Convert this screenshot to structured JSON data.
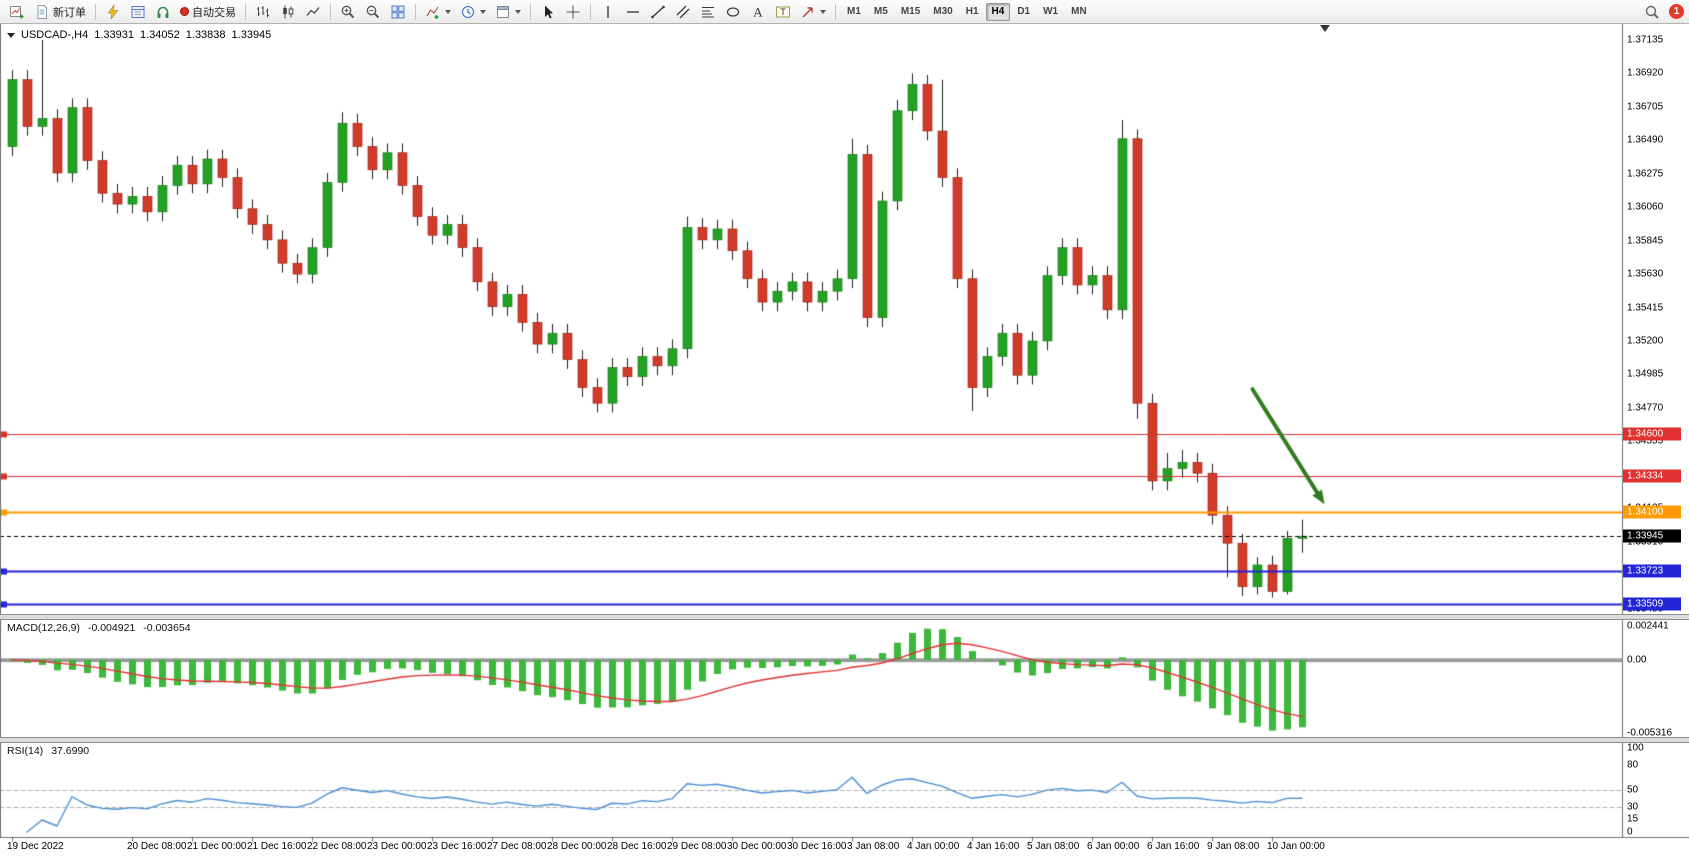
{
  "toolbar": {
    "new_order_label": "新订单",
    "autotrading_label": "自动交易",
    "timeframes": [
      "M1",
      "M5",
      "M15",
      "M30",
      "H1",
      "H4",
      "D1",
      "W1",
      "MN"
    ],
    "active_timeframe": "H4",
    "notification_count": "1",
    "icons": [
      "new-chart",
      "new-order",
      "metaeditor-lightning",
      "data-window",
      "headset-support",
      "autotrading-status",
      "bar-chart-type",
      "candlestick-chart-type",
      "line-chart-type",
      "zoom-in",
      "zoom-out",
      "tile-windows",
      "indicators",
      "periods-clock",
      "templates",
      "cursor",
      "crosshair",
      "vertical-line",
      "horizontal-line",
      "trendline",
      "equidistant-channel",
      "fibonacci",
      "ellipse-shape",
      "text",
      "text-label",
      "arrows",
      "search",
      "notifications"
    ]
  },
  "colors": {
    "bull": "#23a123",
    "bull_border": "#117711",
    "bear": "#d23b2a",
    "bear_border": "#8f1d10",
    "wick": "#222222",
    "macd_hist": "#3cb83c",
    "macd_signal": "#e23232",
    "rsi_line": "#4a8fd4",
    "arrow": "#2f7d1e",
    "grid_dash": "#b0b0b0"
  },
  "chart_data": {
    "type": "candlestick",
    "header": {
      "symbol_period": "USDCAD-,H4",
      "open": "1.33931",
      "high": "1.34052",
      "low": "1.33838",
      "close": "1.33945"
    },
    "ylim": [
      1.3344,
      1.3724
    ],
    "price_axis_labels": [
      "1.37135",
      "1.36920",
      "1.36705",
      "1.36490",
      "1.36275",
      "1.36060",
      "1.35845",
      "1.35630",
      "1.35415",
      "1.35200",
      "1.34985",
      "1.34770",
      "1.34555",
      "1.34340",
      "1.34125",
      "1.33910",
      "1.33695",
      "1.33480"
    ],
    "levels": [
      {
        "price": 1.346,
        "label": "1.34600",
        "color": "#e03030",
        "width": 1,
        "style": "solid",
        "current": false
      },
      {
        "price": 1.34334,
        "label": "1.34334",
        "color": "#e03030",
        "width": 1,
        "style": "solid",
        "current": false
      },
      {
        "price": 1.341,
        "label": "1.34100",
        "color": "#ff9a00",
        "width": 2,
        "style": "solid",
        "current": false
      },
      {
        "price": 1.33945,
        "label": "1.33945",
        "color": "#000000",
        "width": 1,
        "style": "dash",
        "current": true
      },
      {
        "price": 1.33723,
        "label": "1.33723",
        "color": "#2424d8",
        "width": 2,
        "style": "solid",
        "current": false
      },
      {
        "price": 1.33509,
        "label": "1.33509",
        "color": "#2424d8",
        "width": 2,
        "style": "solid",
        "current": false
      }
    ],
    "arrow": {
      "from": {
        "bar": 82.7,
        "price": 1.3489
      },
      "to": {
        "bar": 87.5,
        "price": 1.3415
      },
      "color": "#2f7d1e"
    },
    "macd": {
      "label": "MACD(12,26,9)",
      "main_value": "-0.004921",
      "signal_value": "-0.003654",
      "axis_labels": [
        "0.002441",
        "0.00",
        "-0.005316"
      ],
      "max": 0.002441,
      "min": -0.005316,
      "fast": 12,
      "slow": 26,
      "signal": 9
    },
    "rsi": {
      "label": "RSI(14)",
      "value": "37.6990",
      "period": 14,
      "axis_labels": [
        "100",
        "80",
        "50",
        "30",
        "15",
        "0"
      ],
      "levels": [
        50,
        30
      ],
      "max": 100,
      "min": 0
    },
    "time_labels": [
      {
        "bar": 0,
        "text": "19 Dec 2022"
      },
      {
        "bar": 8,
        "text": "20 Dec 08:00"
      },
      {
        "bar": 12,
        "text": "21 Dec 00:00"
      },
      {
        "bar": 16,
        "text": "21 Dec 16:00"
      },
      {
        "bar": 20,
        "text": "22 Dec 08:00"
      },
      {
        "bar": 24,
        "text": "23 Dec 00:00"
      },
      {
        "bar": 28,
        "text": "23 Dec 16:00"
      },
      {
        "bar": 32,
        "text": "27 Dec 08:00"
      },
      {
        "bar": 36,
        "text": "28 Dec 00:00"
      },
      {
        "bar": 40,
        "text": "28 Dec 16:00"
      },
      {
        "bar": 44,
        "text": "29 Dec 08:00"
      },
      {
        "bar": 48,
        "text": "30 Dec 00:00"
      },
      {
        "bar": 52,
        "text": "30 Dec 16:00"
      },
      {
        "bar": 56,
        "text": "3 Jan 08:00"
      },
      {
        "bar": 60,
        "text": "4 Jan 00:00"
      },
      {
        "bar": 64,
        "text": "4 Jan 16:00"
      },
      {
        "bar": 68,
        "text": "5 Jan 08:00"
      },
      {
        "bar": 72,
        "text": "6 Jan 00:00"
      },
      {
        "bar": 76,
        "text": "6 Jan 16:00"
      },
      {
        "bar": 80,
        "text": "9 Jan 08:00"
      },
      {
        "bar": 84,
        "text": "10 Jan 00:00"
      }
    ],
    "candles": [
      [
        1.3645,
        1.3694,
        1.3639,
        1.3688
      ],
      [
        1.3688,
        1.3694,
        1.3652,
        1.3658
      ],
      [
        1.3658,
        1.37135,
        1.3652,
        1.3663
      ],
      [
        1.3663,
        1.3669,
        1.3622,
        1.3628
      ],
      [
        1.3628,
        1.3676,
        1.3622,
        1.367
      ],
      [
        1.367,
        1.3676,
        1.363,
        1.3636
      ],
      [
        1.3636,
        1.3642,
        1.3609,
        1.3615
      ],
      [
        1.3615,
        1.3621,
        1.3602,
        1.3608
      ],
      [
        1.3608,
        1.3619,
        1.3602,
        1.3613
      ],
      [
        1.3613,
        1.3619,
        1.3597,
        1.3603
      ],
      [
        1.3603,
        1.3626,
        1.3597,
        1.362
      ],
      [
        1.362,
        1.3639,
        1.3614,
        1.3633
      ],
      [
        1.3633,
        1.3639,
        1.3615,
        1.3621
      ],
      [
        1.3621,
        1.3643,
        1.3615,
        1.3637
      ],
      [
        1.3637,
        1.3643,
        1.3619,
        1.3625
      ],
      [
        1.3625,
        1.3631,
        1.3599,
        1.3605
      ],
      [
        1.3605,
        1.3611,
        1.3589,
        1.3595
      ],
      [
        1.3595,
        1.3601,
        1.3579,
        1.3585
      ],
      [
        1.3585,
        1.3591,
        1.3564,
        1.357
      ],
      [
        1.357,
        1.3576,
        1.3557,
        1.3563
      ],
      [
        1.3563,
        1.3586,
        1.3557,
        1.358
      ],
      [
        1.358,
        1.3628,
        1.3574,
        1.3622
      ],
      [
        1.3622,
        1.3667,
        1.3616,
        1.366
      ],
      [
        1.366,
        1.3666,
        1.3639,
        1.3645
      ],
      [
        1.3645,
        1.3651,
        1.3624,
        1.363
      ],
      [
        1.363,
        1.3647,
        1.3624,
        1.3641
      ],
      [
        1.3641,
        1.3647,
        1.3614,
        1.362
      ],
      [
        1.362,
        1.3626,
        1.3594,
        1.36
      ],
      [
        1.36,
        1.3606,
        1.3582,
        1.3588
      ],
      [
        1.3588,
        1.3601,
        1.3582,
        1.3595
      ],
      [
        1.3595,
        1.3601,
        1.3574,
        1.358
      ],
      [
        1.358,
        1.3586,
        1.3552,
        1.3558
      ],
      [
        1.3558,
        1.3564,
        1.3536,
        1.3542
      ],
      [
        1.3542,
        1.3556,
        1.3536,
        1.355
      ],
      [
        1.355,
        1.3556,
        1.3526,
        1.3532
      ],
      [
        1.3532,
        1.3538,
        1.3512,
        1.3518
      ],
      [
        1.3518,
        1.3531,
        1.3512,
        1.3525
      ],
      [
        1.3525,
        1.3531,
        1.3502,
        1.3508
      ],
      [
        1.3508,
        1.3514,
        1.3484,
        1.349
      ],
      [
        1.349,
        1.3496,
        1.3474,
        1.348
      ],
      [
        1.348,
        1.3509,
        1.3474,
        1.3503
      ],
      [
        1.3503,
        1.3509,
        1.3491,
        1.3497
      ],
      [
        1.3497,
        1.3516,
        1.3491,
        1.351
      ],
      [
        1.351,
        1.3516,
        1.3498,
        1.3504
      ],
      [
        1.3504,
        1.3521,
        1.3498,
        1.3515
      ],
      [
        1.3515,
        1.36,
        1.3509,
        1.3593
      ],
      [
        1.3593,
        1.3599,
        1.3579,
        1.3585
      ],
      [
        1.3585,
        1.3598,
        1.3579,
        1.3592
      ],
      [
        1.3592,
        1.3598,
        1.3572,
        1.3578
      ],
      [
        1.3578,
        1.3584,
        1.3554,
        1.356
      ],
      [
        1.356,
        1.3566,
        1.3539,
        1.3545
      ],
      [
        1.3545,
        1.3558,
        1.3539,
        1.3552
      ],
      [
        1.3552,
        1.3564,
        1.3546,
        1.3558
      ],
      [
        1.3558,
        1.3564,
        1.3539,
        1.3545
      ],
      [
        1.3545,
        1.3558,
        1.3539,
        1.3552
      ],
      [
        1.3552,
        1.3566,
        1.3546,
        1.356
      ],
      [
        1.356,
        1.365,
        1.3554,
        1.364
      ],
      [
        1.364,
        1.3646,
        1.3529,
        1.3535
      ],
      [
        1.3535,
        1.3616,
        1.3529,
        1.361
      ],
      [
        1.361,
        1.3675,
        1.3604,
        1.3668
      ],
      [
        1.3668,
        1.3692,
        1.3662,
        1.3685
      ],
      [
        1.3685,
        1.3691,
        1.3649,
        1.3655
      ],
      [
        1.3655,
        1.3688,
        1.3619,
        1.3625
      ],
      [
        1.3625,
        1.3631,
        1.3554,
        1.356
      ],
      [
        1.356,
        1.3566,
        1.3475,
        1.349
      ],
      [
        1.349,
        1.3516,
        1.3484,
        1.351
      ],
      [
        1.351,
        1.3531,
        1.3504,
        1.3525
      ],
      [
        1.3525,
        1.3531,
        1.3492,
        1.3498
      ],
      [
        1.3498,
        1.3526,
        1.3492,
        1.352
      ],
      [
        1.352,
        1.3568,
        1.3514,
        1.3562
      ],
      [
        1.3562,
        1.3586,
        1.3556,
        1.358
      ],
      [
        1.358,
        1.3586,
        1.355,
        1.3556
      ],
      [
        1.3556,
        1.3568,
        1.355,
        1.3562
      ],
      [
        1.3562,
        1.3568,
        1.3534,
        1.354
      ],
      [
        1.354,
        1.3662,
        1.3534,
        1.365
      ],
      [
        1.365,
        1.3656,
        1.347,
        1.348
      ],
      [
        1.348,
        1.3486,
        1.3424,
        1.343
      ],
      [
        1.343,
        1.3448,
        1.3424,
        1.3438
      ],
      [
        1.3438,
        1.345,
        1.3432,
        1.3442
      ],
      [
        1.3442,
        1.3448,
        1.3429,
        1.3435
      ],
      [
        1.3435,
        1.3441,
        1.3402,
        1.3408
      ],
      [
        1.3408,
        1.3414,
        1.3368,
        1.339
      ],
      [
        1.339,
        1.3396,
        1.3356,
        1.3362
      ],
      [
        1.3362,
        1.3381,
        1.3357,
        1.3376
      ],
      [
        1.3376,
        1.3382,
        1.3355,
        1.3359
      ],
      [
        1.3359,
        1.3398,
        1.3357,
        1.33931
      ],
      [
        1.33931,
        1.34052,
        1.33838,
        1.33945
      ]
    ]
  }
}
